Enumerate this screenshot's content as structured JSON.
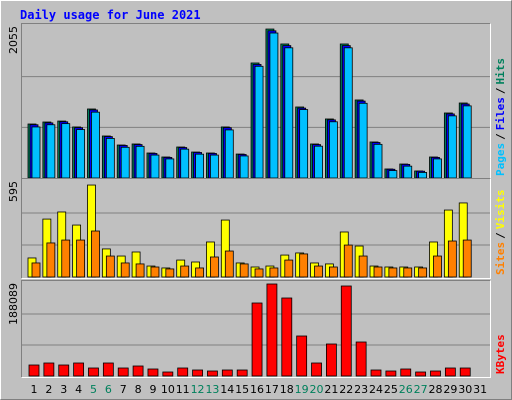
{
  "title": "Daily usage for June 2021",
  "legend_separator": "/",
  "category_highlight": {
    "categories": [
      "5",
      "6",
      "12",
      "13",
      "19",
      "20",
      "26",
      "27"
    ],
    "color": "#00805c"
  },
  "chart_data": [
    {
      "type": "bar",
      "categories": [
        "1",
        "2",
        "3",
        "4",
        "5",
        "6",
        "7",
        "8",
        "9",
        "10",
        "11",
        "12",
        "13",
        "14",
        "15",
        "16",
        "17",
        "18",
        "19",
        "20",
        "21",
        "22",
        "23",
        "24",
        "25",
        "26",
        "27",
        "28",
        "29",
        "30",
        "31"
      ],
      "ylim": [
        0,
        2055
      ],
      "yticks": [
        2055
      ],
      "series": [
        {
          "name": "Hits",
          "color": "#00805c",
          "values": [
            730,
            757,
            770,
            690,
            933,
            568,
            446,
            460,
            338,
            284,
            419,
            351,
            338,
            690,
            324,
            1555,
            2014,
            1812,
            960,
            460,
            798,
            1812,
            1055,
            487,
            122,
            189,
            95,
            284,
            879,
            1014,
            null
          ]
        },
        {
          "name": "Files",
          "color": "#0000ff",
          "values": [
            720,
            745,
            760,
            680,
            920,
            560,
            440,
            452,
            332,
            278,
            412,
            345,
            332,
            680,
            318,
            1535,
            1990,
            1790,
            945,
            452,
            786,
            1790,
            1040,
            480,
            118,
            184,
            92,
            278,
            866,
            1000,
            null
          ]
        },
        {
          "name": "Pages",
          "color": "#00c0ff",
          "values": [
            690,
            720,
            735,
            655,
            890,
            535,
            415,
            428,
            310,
            258,
            390,
            322,
            310,
            650,
            298,
            1510,
            1960,
            1760,
            925,
            430,
            760,
            1760,
            1010,
            455,
            100,
            160,
            75,
            258,
            840,
            975,
            null
          ]
        }
      ]
    },
    {
      "type": "bar",
      "categories": [
        "1",
        "2",
        "3",
        "4",
        "5",
        "6",
        "7",
        "8",
        "9",
        "10",
        "11",
        "12",
        "13",
        "14",
        "15",
        "16",
        "17",
        "18",
        "19",
        "20",
        "21",
        "22",
        "23",
        "24",
        "25",
        "26",
        "27",
        "28",
        "29",
        "30",
        "31"
      ],
      "ylim": [
        0,
        595
      ],
      "yticks": [
        595
      ],
      "series": [
        {
          "name": "Visits",
          "color": "#ffff00",
          "values": [
            118,
            359,
            403,
            322,
            570,
            174,
            130,
            155,
            68,
            56,
            105,
            93,
            217,
            353,
            87,
            62,
            68,
            136,
            149,
            87,
            81,
            279,
            192,
            68,
            62,
            62,
            62,
            217,
            415,
            459,
            null
          ]
        },
        {
          "name": "Sites",
          "color": "#ff8000",
          "values": [
            87,
            211,
            229,
            229,
            285,
            130,
            87,
            81,
            62,
            50,
            68,
            56,
            124,
            161,
            81,
            50,
            56,
            105,
            143,
            68,
            62,
            198,
            130,
            62,
            56,
            56,
            56,
            130,
            223,
            229,
            null
          ]
        }
      ]
    },
    {
      "type": "bar",
      "categories": [
        "1",
        "2",
        "3",
        "4",
        "5",
        "6",
        "7",
        "8",
        "9",
        "10",
        "11",
        "12",
        "13",
        "14",
        "15",
        "16",
        "17",
        "18",
        "19",
        "20",
        "21",
        "22",
        "23",
        "24",
        "25",
        "26",
        "27",
        "28",
        "29",
        "30",
        "31"
      ],
      "ylim": [
        0,
        188089
      ],
      "yticks": [
        188089
      ],
      "series": [
        {
          "name": "KBytes",
          "color": "#ff0000",
          "values": [
            22247,
            26290,
            22247,
            26290,
            16180,
            26290,
            16180,
            20224,
            14157,
            8090,
            16180,
            12135,
            10112,
            12135,
            12135,
            147640,
            186067,
            157750,
            80898,
            26290,
            64718,
            182022,
            68763,
            12135,
            10112,
            14157,
            8090,
            10112,
            16180,
            16180,
            null
          ]
        }
      ]
    }
  ]
}
